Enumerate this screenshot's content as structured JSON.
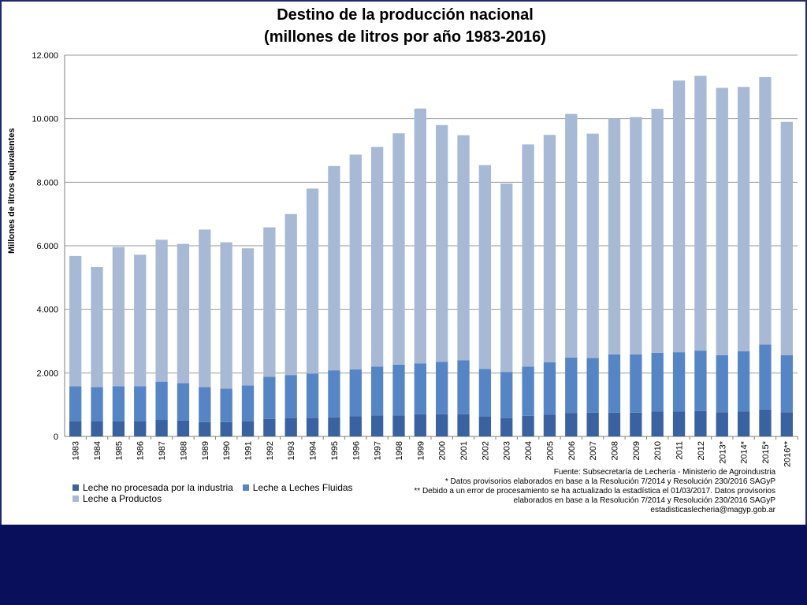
{
  "chart_data": {
    "type": "bar",
    "stacked": true,
    "title": "Destino de la producción nacional",
    "subtitle": "(millones de litros por año 1983-2016)",
    "xlabel": "",
    "ylabel": "Millones de litros equivalentes",
    "ylim": [
      0,
      12000
    ],
    "yticks": [
      "0",
      "2.000",
      "4.000",
      "6.000",
      "8.000",
      "10.000",
      "12.000"
    ],
    "ytick_values": [
      0,
      2000,
      4000,
      6000,
      8000,
      10000,
      12000
    ],
    "grid": true,
    "legend_position": "bottom-left",
    "categories": [
      "1983",
      "1984",
      "1985",
      "1986",
      "1987",
      "1988",
      "1989",
      "1990",
      "1991",
      "1992",
      "1993",
      "1994",
      "1995",
      "1996",
      "1997",
      "1998",
      "1999",
      "2000",
      "2001",
      "2002",
      "2003",
      "2004",
      "2005",
      "2006",
      "2007",
      "2008",
      "2009",
      "2010",
      "2011",
      "2012",
      "2013*",
      "2014*",
      "2015*",
      "2016**"
    ],
    "series": [
      {
        "name": "Leche no procesada por la industria",
        "color": "#3a62a0",
        "values": [
          480,
          480,
          480,
          480,
          520,
          500,
          450,
          450,
          480,
          550,
          580,
          580,
          600,
          640,
          660,
          660,
          700,
          700,
          700,
          620,
          580,
          650,
          690,
          740,
          750,
          750,
          750,
          780,
          780,
          800,
          760,
          780,
          850,
          760
        ]
      },
      {
        "name": "Leche a Leches Fluidas",
        "color": "#5585c5",
        "values": [
          1100,
          1070,
          1100,
          1100,
          1200,
          1180,
          1100,
          1050,
          1120,
          1330,
          1350,
          1400,
          1480,
          1470,
          1540,
          1600,
          1600,
          1650,
          1700,
          1500,
          1450,
          1550,
          1640,
          1740,
          1720,
          1830,
          1830,
          1850,
          1870,
          1900,
          1800,
          1900,
          2040,
          1800
        ]
      },
      {
        "name": "Leche a Productos",
        "color": "#a8b9d6",
        "values": [
          4100,
          3780,
          4380,
          4140,
          4470,
          4380,
          4960,
          4610,
          4320,
          4700,
          5070,
          5820,
          6430,
          6760,
          6910,
          7280,
          8020,
          7450,
          7080,
          6420,
          5930,
          6990,
          7160,
          7670,
          7060,
          7420,
          7470,
          7680,
          8550,
          8650,
          8410,
          8320,
          8420,
          7340
        ]
      }
    ]
  },
  "notes": {
    "source": "Fuente: Subsecretaría de Lechería - Ministerio de Agroindustria",
    "note1": "* Datos provisorios elaborados en base a la Resolución 7/2014 y Resolución 230/2016 SAGyP",
    "note2a": "** Debido a un error de procesamiento se ha actualizado la estadística el 01/03/2017. Datos provisorios",
    "note2b": "elaborados en base a la Resolución 7/2014 y Resolución 230/2016 SAGyP",
    "email": "estadisticaslecheria@magyp.gob.ar"
  }
}
